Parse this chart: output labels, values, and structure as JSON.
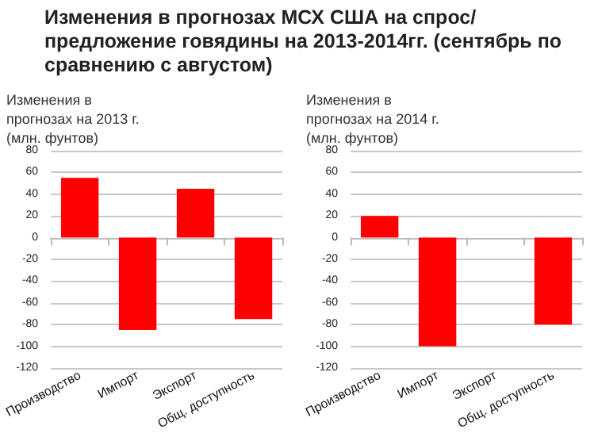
{
  "chart_data": [
    {
      "type": "bar",
      "title": "Изменения в прогнозах МСХ США на спрос/предложение говядины на 2013-2014гг. (сентябрь по сравнению с августом)",
      "ylabel": "Изменения в прогнозах на 2013 г. (млн. фунтов)",
      "categories": [
        "Производство",
        "Импорт",
        "Экспорт",
        "Общ. доступность"
      ],
      "values": [
        55,
        -85,
        45,
        -75
      ],
      "color": "#ff0000",
      "ylim": [
        -120,
        80
      ],
      "yticks": [
        -120,
        -100,
        -80,
        -60,
        -40,
        -20,
        0,
        20,
        40,
        60,
        80
      ],
      "grid": "y"
    },
    {
      "type": "bar",
      "ylabel": "Изменения в прогнозах на 2014 г. (млн. фунтов)",
      "categories": [
        "Производство",
        "Импорт",
        "Экспорт",
        "Общ. доступность"
      ],
      "values": [
        20,
        -100,
        0,
        -80
      ],
      "color": "#ff0000",
      "ylim": [
        -120,
        80
      ],
      "yticks": [
        -120,
        -100,
        -80,
        -60,
        -40,
        -20,
        0,
        20,
        40,
        60,
        80
      ],
      "grid": "y"
    }
  ]
}
